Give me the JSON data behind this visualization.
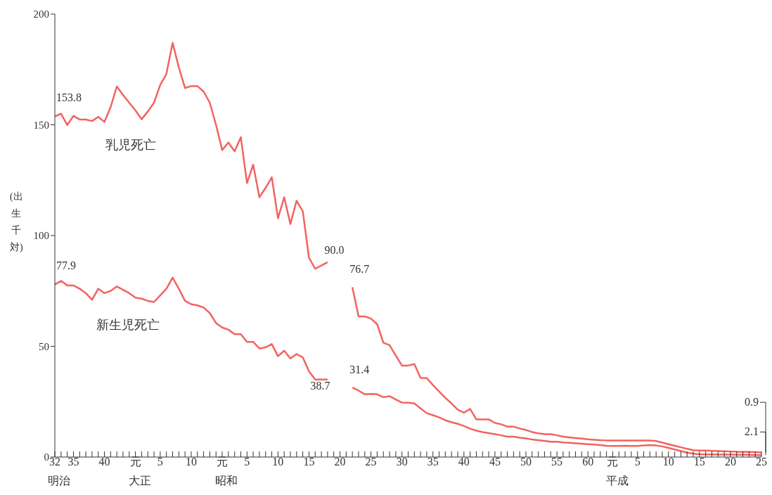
{
  "chart_data": {
    "type": "line",
    "ylabel": "(出生千対)",
    "annotations": [
      "明治",
      "大正",
      "昭和",
      "平成"
    ],
    "categories": [
      "32",
      null,
      null,
      "35",
      null,
      null,
      null,
      null,
      "40",
      null,
      null,
      null,
      null,
      "元",
      null,
      null,
      null,
      "5",
      null,
      null,
      null,
      null,
      "10",
      null,
      null,
      null,
      null,
      "元",
      null,
      null,
      null,
      "5",
      null,
      null,
      null,
      null,
      "10",
      null,
      null,
      null,
      null,
      "15",
      null,
      null,
      null,
      null,
      "20",
      null,
      null,
      null,
      null,
      "25",
      null,
      null,
      null,
      null,
      "30",
      null,
      null,
      null,
      null,
      "35",
      null,
      null,
      null,
      null,
      "40",
      null,
      null,
      null,
      null,
      "45",
      null,
      null,
      null,
      null,
      "50",
      null,
      null,
      null,
      null,
      "55",
      null,
      null,
      null,
      null,
      "60",
      null,
      null,
      null,
      "元",
      null,
      null,
      null,
      "5",
      null,
      null,
      null,
      null,
      "10",
      null,
      null,
      null,
      null,
      "15",
      null,
      null,
      null,
      null,
      "20",
      null,
      null,
      null,
      null,
      "25"
    ],
    "ylim": [
      0,
      200
    ],
    "yticks": [
      0,
      50,
      100,
      150,
      200
    ],
    "series": [
      {
        "name": "乳児死亡",
        "color": "#f26360",
        "values": [
          153.8,
          155.0,
          149.9,
          154.0,
          152.4,
          152.4,
          151.7,
          153.6,
          151.3,
          158.0,
          167.3,
          163.5,
          160,
          156.5,
          152.5,
          156,
          160,
          168,
          173,
          187,
          176,
          166.6,
          167.5,
          167.5,
          165,
          160,
          150,
          138.6,
          142,
          138,
          144.4,
          123.7,
          132,
          117.3,
          121.5,
          126.3,
          107.8,
          117.3,
          105.2,
          115.7,
          111,
          90.0,
          85,
          86.5,
          88,
          null,
          null,
          null,
          76.7,
          63.5,
          63.5,
          62.5,
          60,
          51.6,
          50.5,
          45.8,
          41.3,
          41.3,
          42,
          35.7,
          35.6,
          32.5,
          29.6,
          26.7,
          24.2,
          21.4,
          20,
          21.7,
          17,
          17,
          17,
          15.4,
          14.8,
          13.7,
          13.7,
          12.9,
          12.2,
          11.3,
          10.7,
          10.3,
          10.3,
          9.8,
          9.2,
          8.9,
          8.6,
          8.3,
          8.0,
          7.8,
          7.6,
          7.5,
          7.5,
          7.5,
          7.5,
          7.5,
          7.5,
          7.5,
          7.5,
          7.2,
          6.5,
          5.8,
          5.1,
          4.4,
          3.7,
          3.1,
          2.9,
          2.9,
          2.8,
          2.7,
          2.6,
          2.5,
          2.4,
          2.3,
          2.3,
          2.2,
          2.1
        ],
        "value_labels": [
          "153.8",
          null,
          null,
          null,
          null,
          null,
          null,
          null,
          null,
          null,
          null,
          null,
          null,
          null,
          null,
          null,
          null,
          null,
          null,
          null,
          null,
          null,
          null,
          null,
          null,
          null,
          null,
          null,
          null,
          null,
          null,
          null,
          null,
          null,
          null,
          null,
          null,
          null,
          null,
          null,
          null,
          "90.0",
          null,
          null,
          null,
          null,
          null,
          null,
          "76.7",
          null,
          null,
          null,
          null,
          null,
          null,
          null,
          null,
          null,
          null,
          null,
          null,
          null,
          null,
          null,
          null,
          null,
          null,
          null,
          null,
          null,
          null,
          null,
          null,
          null,
          null,
          null,
          null,
          null,
          null,
          null,
          null,
          null,
          null,
          null,
          null,
          null,
          null,
          null,
          null,
          null,
          null,
          null,
          null,
          null,
          null,
          null,
          null,
          null,
          null,
          null,
          null,
          null,
          null,
          null,
          null,
          null,
          null,
          null,
          null,
          null,
          null,
          null,
          null,
          null,
          "2.1"
        ]
      },
      {
        "name": "新生児死亡",
        "color": "#f26360",
        "values": [
          77.9,
          79.5,
          77.5,
          77.5,
          76,
          74,
          71,
          76,
          74,
          75,
          77,
          75.5,
          74,
          72,
          71.5,
          70.5,
          70,
          73,
          76,
          81,
          76,
          70.5,
          69,
          68.5,
          67.5,
          65,
          60.5,
          58.5,
          57.5,
          55.5,
          55.5,
          52,
          52,
          49,
          49.5,
          51,
          45.5,
          48,
          44.5,
          46.5,
          45,
          38.7,
          35,
          35,
          35,
          null,
          null,
          null,
          31.4,
          30,
          28.3,
          28.5,
          28.3,
          27.0,
          27.5,
          26,
          24.6,
          24.5,
          24.2,
          22,
          19.8,
          18.9,
          17.9,
          16.6,
          15.7,
          15.0,
          14,
          12.8,
          11.9,
          11.3,
          10.8,
          10.3,
          9.8,
          9.2,
          9.2,
          8.7,
          8.4,
          7.9,
          7.6,
          7.3,
          6.9,
          6.9,
          6.6,
          6.4,
          6.2,
          6.0,
          5.8,
          5.6,
          5.4,
          5.1,
          5.0,
          5.0,
          5.1,
          5.0,
          5.0,
          5.2,
          5.4,
          5.2,
          4.8,
          4.1,
          3.4,
          2.7,
          2.0,
          1.5,
          1.3,
          1.2,
          1.2,
          1.1,
          1.1,
          1.1,
          1.0,
          1.0,
          1.0,
          0.9,
          0.9
        ],
        "value_labels": [
          "77.9",
          null,
          null,
          null,
          null,
          null,
          null,
          null,
          null,
          null,
          null,
          null,
          null,
          null,
          null,
          null,
          null,
          null,
          null,
          null,
          null,
          null,
          null,
          null,
          null,
          null,
          null,
          null,
          null,
          null,
          null,
          null,
          null,
          null,
          null,
          null,
          null,
          null,
          null,
          null,
          null,
          "38.7",
          null,
          null,
          null,
          null,
          null,
          null,
          "31.4",
          null,
          null,
          null,
          null,
          null,
          null,
          null,
          null,
          null,
          null,
          null,
          null,
          null,
          null,
          null,
          null,
          null,
          null,
          null,
          null,
          null,
          null,
          null,
          null,
          null,
          null,
          null,
          null,
          null,
          null,
          null,
          null,
          null,
          null,
          null,
          null,
          null,
          null,
          null,
          null,
          null,
          null,
          null,
          null,
          null,
          null,
          null,
          null,
          null,
          null,
          null,
          null,
          null,
          null,
          null,
          null,
          null,
          null,
          null,
          null,
          null,
          null,
          null,
          null,
          null,
          "0.9"
        ]
      }
    ]
  }
}
